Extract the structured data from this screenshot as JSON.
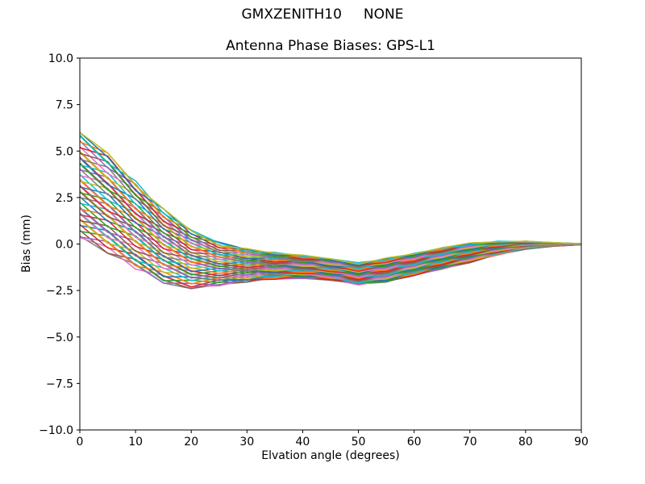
{
  "chart_data": {
    "type": "line",
    "suptitle": "GMXZENITH10     NONE",
    "title": "Antenna Phase Biases: GPS-L1",
    "xlabel": "Elvation angle (degrees)",
    "ylabel": "Bias (mm)",
    "xlim": [
      0,
      90
    ],
    "ylim": [
      -10,
      10
    ],
    "x_ticks": [
      0,
      10,
      20,
      30,
      40,
      50,
      60,
      70,
      80,
      90
    ],
    "x_tick_labels": [
      "0",
      "10",
      "20",
      "30",
      "40",
      "50",
      "60",
      "70",
      "80",
      "90"
    ],
    "y_ticks": [
      10.0,
      7.5,
      5.0,
      2.5,
      0.0,
      -2.5,
      -5.0,
      -7.5,
      -10.0
    ],
    "y_tick_labels": [
      "10.0",
      "7.5",
      "5.0",
      "2.5",
      "0.0",
      "−2.5",
      "−5.0",
      "−7.5",
      "−10.0"
    ],
    "grid": false,
    "legend": "none",
    "background_color": "#ffffff",
    "axes_color": "#000000",
    "text_color": "#000000",
    "line_width": 1.5,
    "x": [
      0,
      5,
      10,
      15,
      20,
      25,
      30,
      35,
      40,
      45,
      50,
      55,
      60,
      65,
      70,
      75,
      80,
      85,
      90
    ],
    "band_top": [
      6.0,
      4.9,
      3.4,
      1.9,
      0.75,
      0.1,
      -0.25,
      -0.45,
      -0.6,
      -0.8,
      -1.0,
      -0.75,
      -0.5,
      -0.2,
      0.05,
      0.15,
      0.15,
      0.08,
      0.02
    ],
    "band_bottom": [
      0.35,
      -0.5,
      -1.35,
      -2.1,
      -2.4,
      -2.25,
      -2.05,
      -1.9,
      -1.85,
      -1.95,
      -2.2,
      -2.05,
      -1.7,
      -1.35,
      -1.0,
      -0.6,
      -0.28,
      -0.12,
      -0.04
    ],
    "series_count": 50,
    "series_fractions": [
      0,
      0.02,
      0.041,
      0.061,
      0.082,
      0.102,
      0.122,
      0.143,
      0.163,
      0.184,
      0.204,
      0.224,
      0.245,
      0.265,
      0.286,
      0.306,
      0.327,
      0.347,
      0.367,
      0.388,
      0.408,
      0.429,
      0.449,
      0.469,
      0.49,
      0.51,
      0.531,
      0.551,
      0.571,
      0.592,
      0.612,
      0.633,
      0.653,
      0.673,
      0.694,
      0.714,
      0.735,
      0.755,
      0.776,
      0.796,
      0.816,
      0.837,
      0.857,
      0.878,
      0.898,
      0.918,
      0.939,
      0.959,
      0.98,
      1
    ],
    "palette": [
      "#bcbd22",
      "#17becf",
      "#1f77b4",
      "#ff7f0e",
      "#2ca02c",
      "#d62728",
      "#9467bd",
      "#8c564b",
      "#e377c2",
      "#7f7f7f"
    ]
  }
}
